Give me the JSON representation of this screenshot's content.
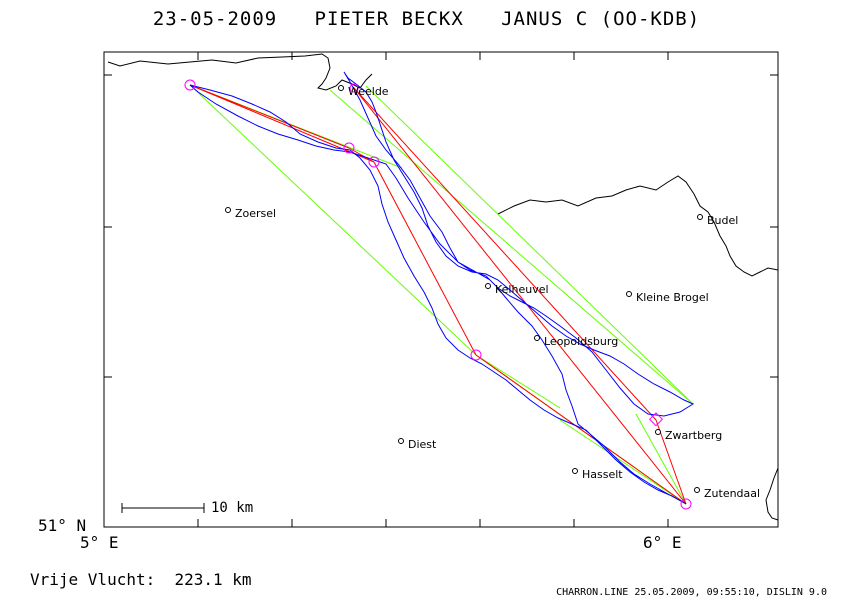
{
  "header": {
    "title": "23-05-2009   PIETER BECKX   JANUS C (OO-KDB)"
  },
  "axes": {
    "lat_label": "51° N",
    "lon_left": "5° E",
    "lon_right": "6° E"
  },
  "scale": {
    "label": "10 km"
  },
  "summary": {
    "distance_text": "Vrije Vlucht:  223.1 km"
  },
  "footer": {
    "text": "CHARRON.LINE 25.05.2009, 09:55:10, DISLIN 9.0"
  },
  "places": [
    {
      "name": "Weelde"
    },
    {
      "name": "Zoersel"
    },
    {
      "name": "Budel"
    },
    {
      "name": "Kelheuvel"
    },
    {
      "name": "Kleine Brogel"
    },
    {
      "name": "Leopoldsburg"
    },
    {
      "name": "Zwartberg"
    },
    {
      "name": "Diest"
    },
    {
      "name": "Hasselt"
    },
    {
      "name": "Zutendaal"
    }
  ],
  "colors": {
    "track": "#0000ff",
    "legs": "#ff0000",
    "sector": "#66ff00",
    "turnpoint": "#ff00ff",
    "border": "#000000"
  }
}
